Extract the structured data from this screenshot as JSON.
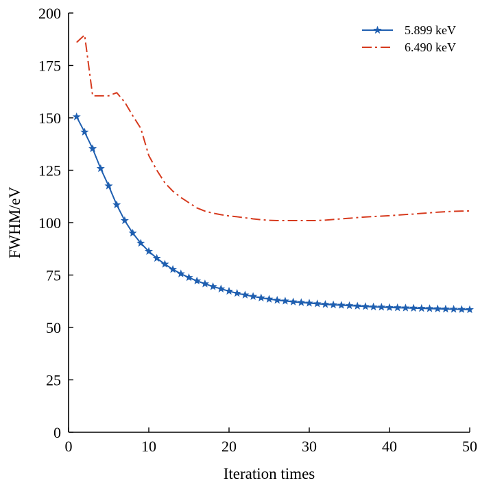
{
  "chart_data": {
    "type": "line",
    "xlabel": "Iteration times",
    "ylabel": "FWHM/eV",
    "xlim": [
      0,
      50
    ],
    "ylim": [
      0,
      200
    ],
    "xticks": [
      0,
      10,
      20,
      30,
      40,
      50
    ],
    "yticks": [
      0,
      25,
      50,
      75,
      100,
      125,
      150,
      175,
      200
    ],
    "grid": false,
    "legend_position": "top-right",
    "series": [
      {
        "name": "5.899 keV",
        "color": "#1f5fb0",
        "line_style": "solid",
        "marker": "star",
        "x": [
          1,
          2,
          3,
          4,
          5,
          6,
          7,
          8,
          9,
          10,
          11,
          12,
          13,
          14,
          15,
          16,
          17,
          18,
          19,
          20,
          21,
          22,
          23,
          24,
          25,
          26,
          27,
          28,
          29,
          30,
          31,
          32,
          33,
          34,
          35,
          36,
          37,
          38,
          39,
          40,
          41,
          42,
          43,
          44,
          45,
          46,
          47,
          48,
          49,
          50
        ],
        "values": [
          150.5,
          143.2,
          135.3,
          125.8,
          117.5,
          108.5,
          101.0,
          95.0,
          90.2,
          86.3,
          83.0,
          80.2,
          77.7,
          75.6,
          73.8,
          72.2,
          70.8,
          69.5,
          68.4,
          67.3,
          66.3,
          65.5,
          64.8,
          64.1,
          63.5,
          63.0,
          62.6,
          62.2,
          61.9,
          61.6,
          61.3,
          61.0,
          60.8,
          60.6,
          60.4,
          60.2,
          60.0,
          59.8,
          59.7,
          59.5,
          59.4,
          59.3,
          59.2,
          59.1,
          59.0,
          58.9,
          58.8,
          58.7,
          58.6,
          58.5
        ]
      },
      {
        "name": "6.490 keV",
        "color": "#d63a1e",
        "line_style": "dash-dot",
        "marker": "none",
        "x": [
          1,
          2,
          3,
          4,
          5,
          6,
          7,
          8,
          9,
          10,
          11,
          12,
          13,
          14,
          15,
          16,
          17,
          18,
          19,
          20,
          21,
          22,
          23,
          24,
          25,
          26,
          27,
          28,
          29,
          30,
          31,
          32,
          33,
          34,
          35,
          36,
          37,
          38,
          39,
          40,
          41,
          42,
          43,
          44,
          45,
          46,
          47,
          48,
          49,
          50
        ],
        "values": [
          186.0,
          189.5,
          160.5,
          160.5,
          160.5,
          162.0,
          157.5,
          151.0,
          145.0,
          132.0,
          125.0,
          119.0,
          115.0,
          112.0,
          109.5,
          107.0,
          105.5,
          104.5,
          103.8,
          103.2,
          102.8,
          102.3,
          101.8,
          101.4,
          101.1,
          101.0,
          101.0,
          101.0,
          101.0,
          101.0,
          101.0,
          101.2,
          101.5,
          101.8,
          102.1,
          102.4,
          102.7,
          102.9,
          103.1,
          103.3,
          103.6,
          103.9,
          104.1,
          104.4,
          104.7,
          105.0,
          105.2,
          105.4,
          105.5,
          105.6
        ]
      }
    ]
  }
}
